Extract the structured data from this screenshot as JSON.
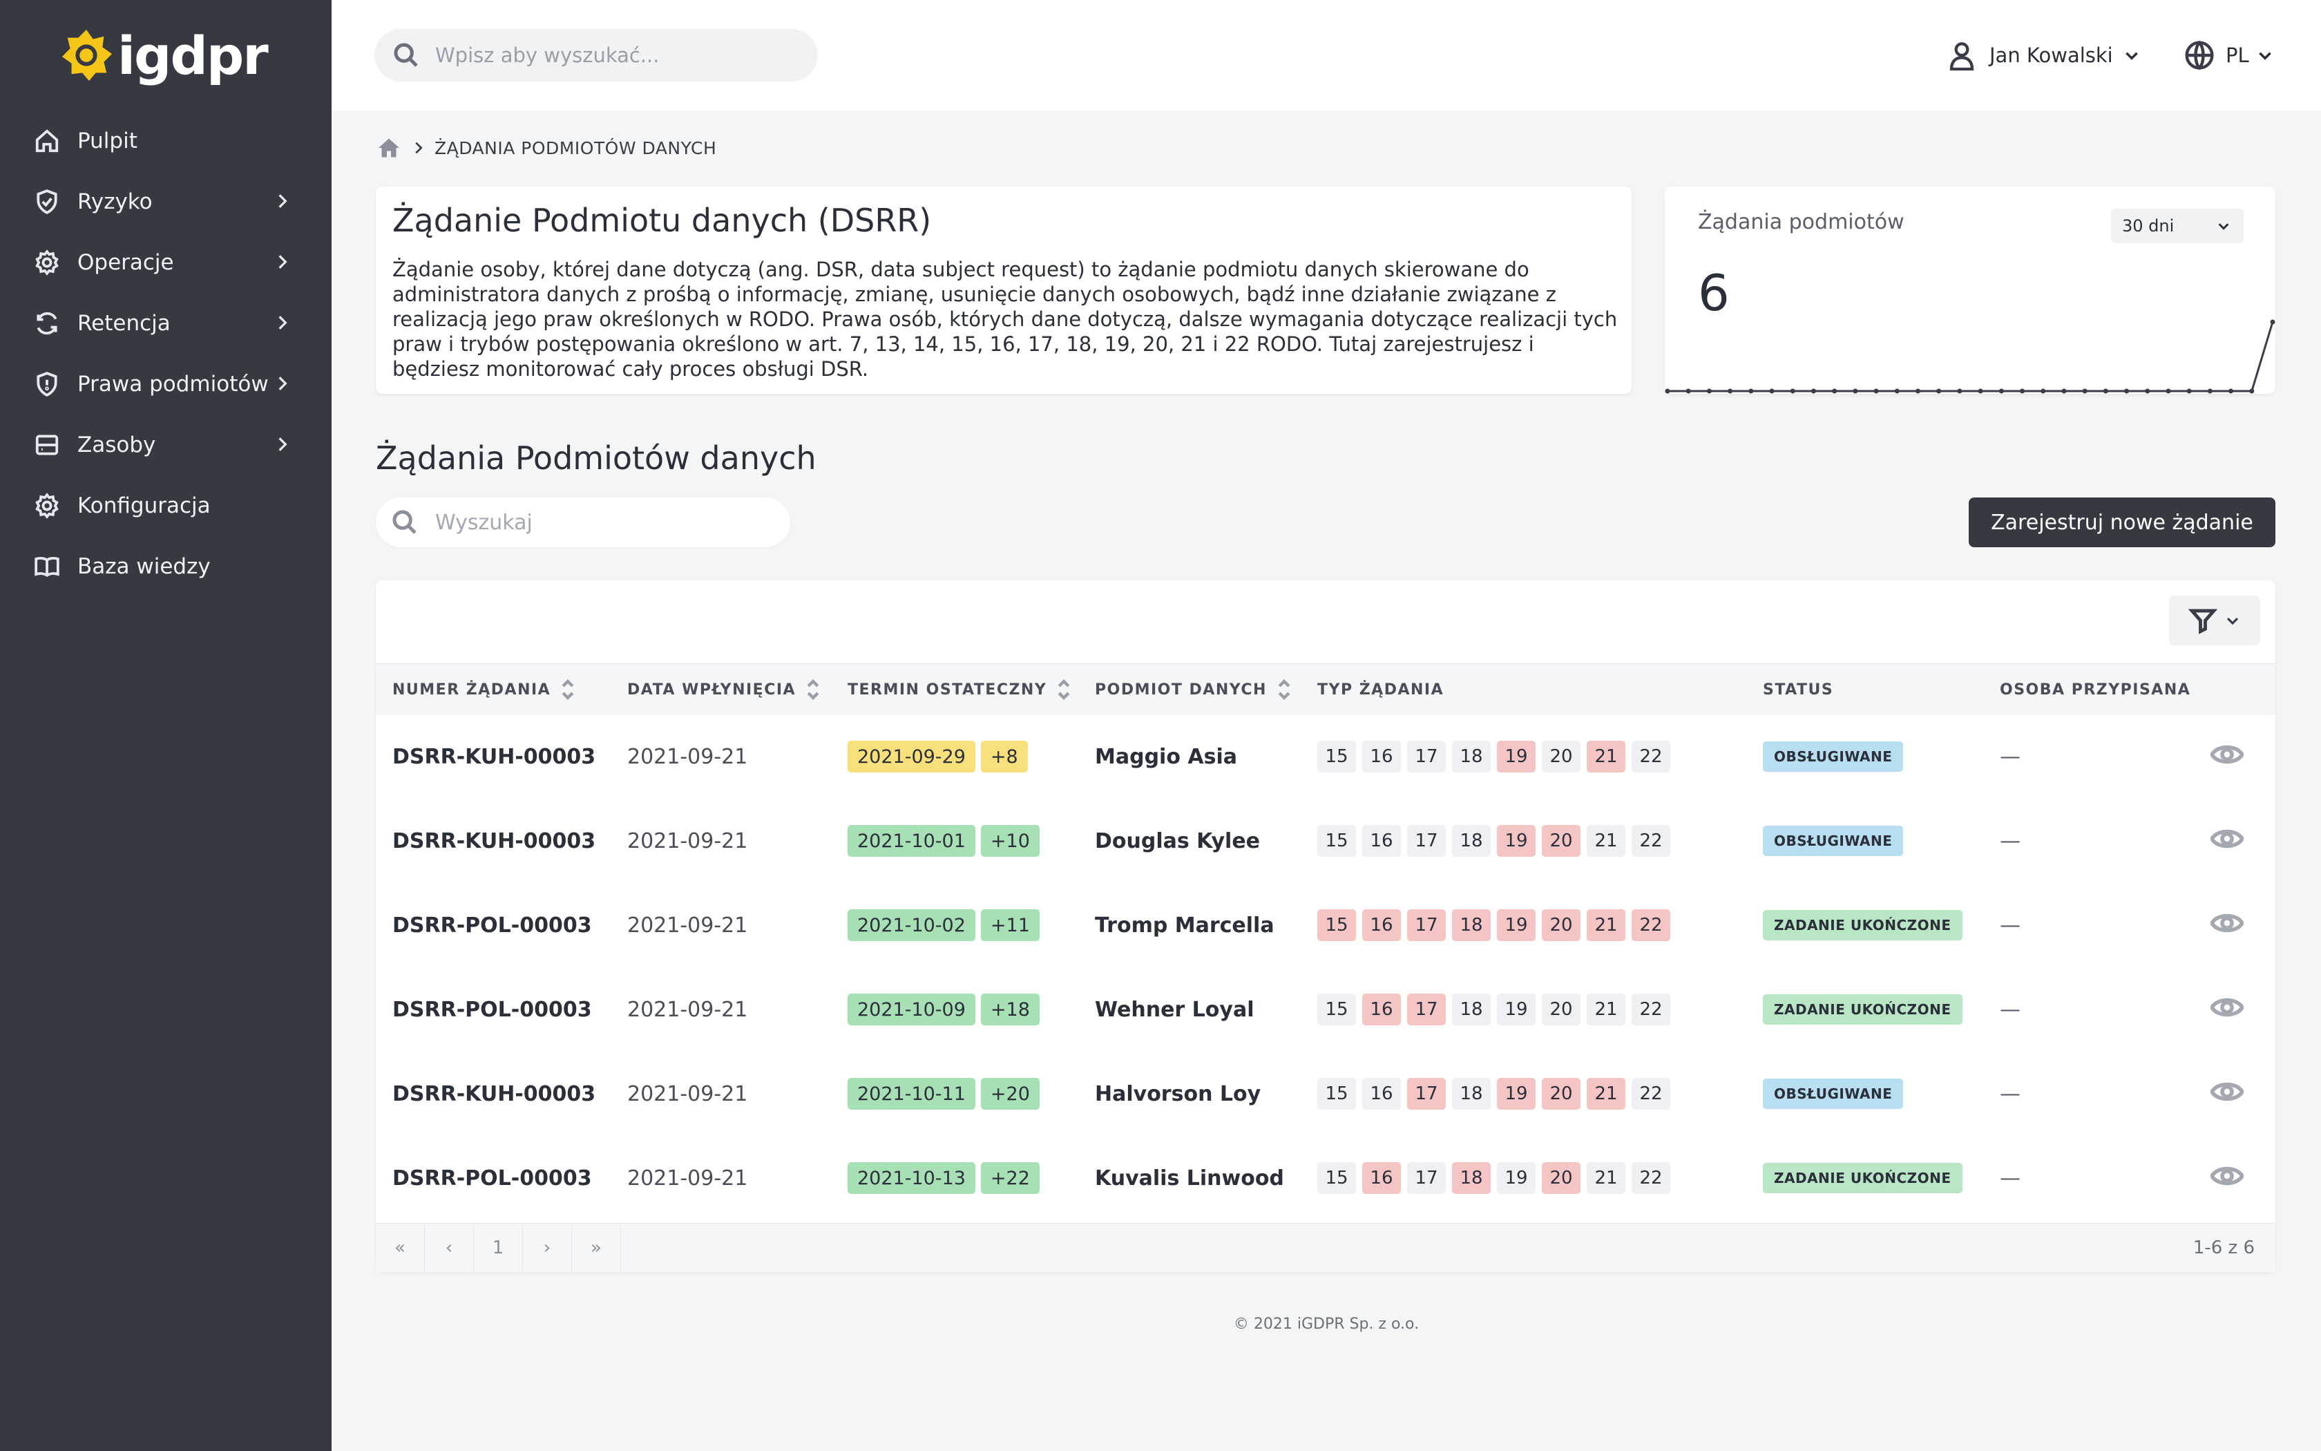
{
  "brand": {
    "name": "igdpr",
    "color": "#f5c518"
  },
  "sidebar": {
    "items": [
      {
        "label": "Pulpit",
        "icon": "home-icon",
        "has_children": false
      },
      {
        "label": "Ryzyko",
        "icon": "shield-check-icon",
        "has_children": true
      },
      {
        "label": "Operacje",
        "icon": "gear-icon",
        "has_children": true
      },
      {
        "label": "Retencja",
        "icon": "refresh-icon",
        "has_children": true
      },
      {
        "label": "Prawa podmiotów",
        "icon": "shield-icon",
        "has_children": true
      },
      {
        "label": "Zasoby",
        "icon": "server-icon",
        "has_children": true
      },
      {
        "label": "Konfiguracja",
        "icon": "gear-icon",
        "has_children": false
      },
      {
        "label": "Baza wiedzy",
        "icon": "book-icon",
        "has_children": false
      }
    ]
  },
  "topbar": {
    "search_placeholder": "Wpisz aby wyszukać...",
    "user_name": "Jan Kowalski",
    "language": "PL"
  },
  "breadcrumb": {
    "current": "ŻĄDANIA PODMIOTÓW DANYCH"
  },
  "info": {
    "title": "Żądanie Podmiotu danych (DSRR)",
    "description": "Żądanie osoby, której dane dotyczą (ang. DSR, data subject request) to żądanie podmiotu danych skierowane do administratora danych z prośbą o informację, zmianę, usunięcie danych osobowych, bądź inne działanie związane z realizacją jego praw określonych w RODO. Prawa osób, których dane dotyczą, dalsze wymagania dotyczące realizacji tych praw i trybów postępowania określono w art. 7, 13, 14, 15, 16, 17, 18, 19, 20, 21 i 22 RODO. Tutaj zarejestrujesz i będziesz monitorować cały proces obsługi DSR."
  },
  "stat": {
    "title": "Żądania podmiotów",
    "period": "30 dni",
    "value": "6",
    "sparkline": [
      0,
      0,
      0,
      0,
      0,
      0,
      0,
      0,
      0,
      0,
      0,
      0,
      0,
      0,
      0,
      0,
      0,
      0,
      0,
      0,
      0,
      0,
      0,
      0,
      0,
      0,
      0,
      0,
      0,
      6
    ]
  },
  "list": {
    "title": "Żądania Podmiotów danych",
    "search_placeholder": "Wyszukaj",
    "new_button": "Zarejestruj nowe żądanie"
  },
  "table": {
    "headers": {
      "number": "NUMER ŻĄDANIA",
      "date": "DATA WPŁYNIĘCIA",
      "deadline": "TERMIN OSTATECZNY",
      "subject": "PODMIOT DANYCH",
      "type": "TYP ŻĄDANIA",
      "status": "STATUS",
      "person": "OSOBA PRZYPISANA"
    },
    "articles": [
      "15",
      "16",
      "17",
      "18",
      "19",
      "20",
      "21",
      "22"
    ],
    "rows": [
      {
        "number": "DSRR-KUH-00003",
        "date": "2021-09-21",
        "deadline": "2021-09-29",
        "days": "+8",
        "deadline_color": "yellow",
        "subject": "Maggio Asia",
        "active": [
          "19",
          "21"
        ],
        "status": "OBSŁUGIWANE",
        "status_color": "blue",
        "person": "—"
      },
      {
        "number": "DSRR-KUH-00003",
        "date": "2021-09-21",
        "deadline": "2021-10-01",
        "days": "+10",
        "deadline_color": "green",
        "subject": "Douglas Kylee",
        "active": [
          "19",
          "20"
        ],
        "status": "OBSŁUGIWANE",
        "status_color": "blue",
        "person": "—"
      },
      {
        "number": "DSRR-POL-00003",
        "date": "2021-09-21",
        "deadline": "2021-10-02",
        "days": "+11",
        "deadline_color": "green",
        "subject": "Tromp Marcella",
        "active": [
          "15",
          "16",
          "17",
          "18",
          "19",
          "20",
          "21",
          "22"
        ],
        "status": "ZADANIE UKOŃCZONE",
        "status_color": "green",
        "person": "—"
      },
      {
        "number": "DSRR-POL-00003",
        "date": "2021-09-21",
        "deadline": "2021-10-09",
        "days": "+18",
        "deadline_color": "green",
        "subject": "Wehner Loyal",
        "active": [
          "16",
          "17"
        ],
        "status": "ZADANIE UKOŃCZONE",
        "status_color": "green",
        "person": "—"
      },
      {
        "number": "DSRR-KUH-00003",
        "date": "2021-09-21",
        "deadline": "2021-10-11",
        "days": "+20",
        "deadline_color": "green",
        "subject": "Halvorson Loy",
        "active": [
          "17",
          "19",
          "20",
          "21"
        ],
        "status": "OBSŁUGIWANE",
        "status_color": "blue",
        "person": "—"
      },
      {
        "number": "DSRR-POL-00003",
        "date": "2021-09-21",
        "deadline": "2021-10-13",
        "days": "+22",
        "deadline_color": "green",
        "subject": "Kuvalis Linwood",
        "active": [
          "16",
          "18",
          "20"
        ],
        "status": "ZADANIE UKOŃCZONE",
        "status_color": "green",
        "person": "—"
      }
    ]
  },
  "pagination": {
    "first": "«",
    "prev": "‹",
    "page": "1",
    "next": "›",
    "last": "»",
    "info": "1-6 z 6"
  },
  "footer": "© 2021 iGDPR Sp. z o.o."
}
